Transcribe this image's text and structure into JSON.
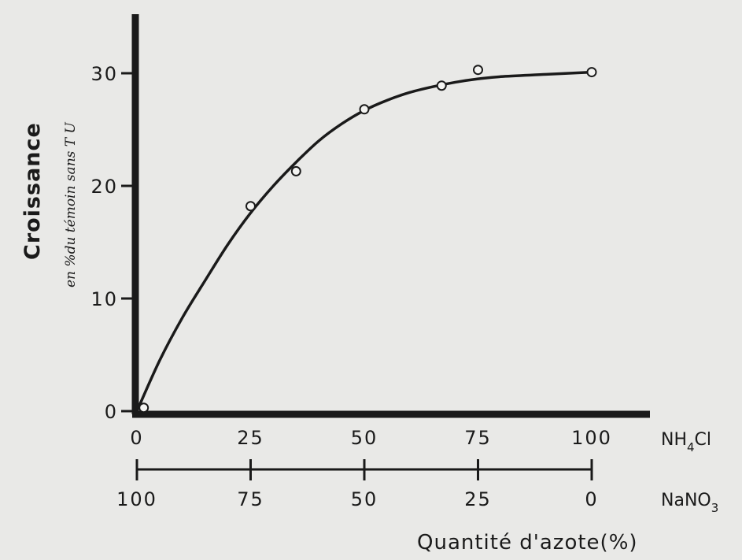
{
  "chart_data": {
    "type": "line",
    "ylabel": "Croissance",
    "ylabel_sub": "en %du témoin sans T U",
    "xlabel": "Quantité d'azote(%)",
    "ylim": [
      0,
      35
    ],
    "xlim": [
      0,
      100
    ],
    "y_ticks": [
      0,
      10,
      20,
      30
    ],
    "y_tick_labels": [
      "0",
      "10",
      "20",
      "30"
    ],
    "x_axis_top": {
      "label_main": "NH",
      "label_sub": "4",
      "label_tail": "Cl",
      "ticks": [
        0,
        25,
        50,
        75,
        100
      ],
      "tick_labels": [
        "0",
        "25",
        "50",
        "75",
        "100"
      ]
    },
    "x_axis_bottom": {
      "label_main": "NaNO",
      "label_sub": "3",
      "ticks": [
        0,
        25,
        50,
        75,
        100
      ],
      "tick_labels": [
        "100",
        "75",
        "50",
        "25",
        "0"
      ]
    },
    "points": [
      {
        "x": 1.5,
        "y": 0.3
      },
      {
        "x": 25,
        "y": 18.2
      },
      {
        "x": 35,
        "y": 21.3
      },
      {
        "x": 50,
        "y": 26.8
      },
      {
        "x": 67,
        "y": 28.9
      },
      {
        "x": 75,
        "y": 30.3
      },
      {
        "x": 100,
        "y": 30.1
      }
    ],
    "curve": [
      {
        "x": 0,
        "y": 0
      },
      {
        "x": 5,
        "y": 4.5
      },
      {
        "x": 10,
        "y": 8.3
      },
      {
        "x": 15,
        "y": 11.6
      },
      {
        "x": 20,
        "y": 14.8
      },
      {
        "x": 25,
        "y": 17.6
      },
      {
        "x": 30,
        "y": 20.0
      },
      {
        "x": 35,
        "y": 22.1
      },
      {
        "x": 40,
        "y": 24.0
      },
      {
        "x": 45,
        "y": 25.5
      },
      {
        "x": 50,
        "y": 26.7
      },
      {
        "x": 55,
        "y": 27.6
      },
      {
        "x": 60,
        "y": 28.3
      },
      {
        "x": 65,
        "y": 28.8
      },
      {
        "x": 70,
        "y": 29.2
      },
      {
        "x": 75,
        "y": 29.5
      },
      {
        "x": 80,
        "y": 29.7
      },
      {
        "x": 90,
        "y": 29.9
      },
      {
        "x": 100,
        "y": 30.1
      }
    ],
    "grid": false,
    "colors": {
      "ink": "#1a1a1a",
      "paper": "#e9e9e7"
    }
  }
}
